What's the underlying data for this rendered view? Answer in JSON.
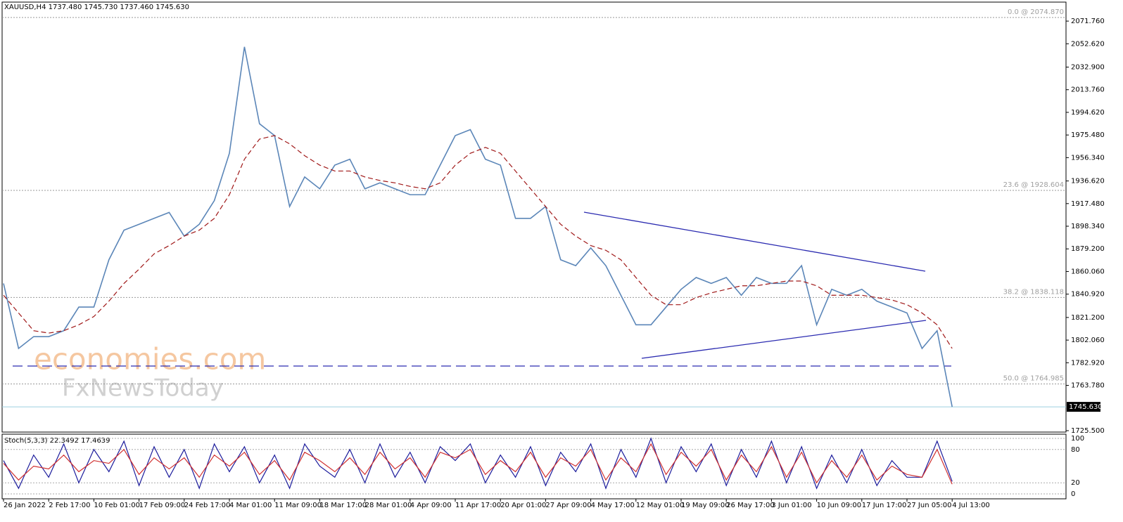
{
  "chart_data": {
    "type": "line",
    "title": "XAUUSD,H4  1737.480 1745.730 1737.460 1745.630",
    "watermark": [
      "economies.com",
      "FxNewsToday"
    ],
    "categories": [
      "26 Jan 2022",
      null,
      null,
      "2 Feb 17:00",
      null,
      null,
      "10 Feb 01:00",
      null,
      null,
      "17 Feb 09:00",
      null,
      null,
      "24 Feb 17:00",
      null,
      null,
      "4 Mar 01:00",
      null,
      null,
      "11 Mar 09:00",
      null,
      null,
      "18 Mar 17:00",
      null,
      null,
      "28 Mar 01:00",
      null,
      null,
      "4 Apr 09:00",
      null,
      null,
      "11 Apr 17:00",
      null,
      null,
      "20 Apr 01:00",
      null,
      null,
      "27 Apr 09:00",
      null,
      null,
      "4 May 17:00",
      null,
      null,
      "12 May 01:00",
      null,
      null,
      "19 May 09:00",
      null,
      null,
      "26 May 17:00",
      null,
      null,
      "3 Jun 01:00",
      null,
      null,
      "10 Jun 09:00",
      null,
      null,
      "17 Jun 17:00",
      null,
      null,
      "27 Jun 05:00",
      null,
      null,
      "4 Jul 13:00"
    ],
    "series": [
      {
        "color": "#5b86b8",
        "values": [
          1850,
          1795,
          1805,
          1805,
          1810,
          1830,
          1830,
          1870,
          1895,
          1900,
          1905,
          1910,
          1890,
          1900,
          1920,
          1960,
          2050,
          1985,
          1975,
          1915,
          1940,
          1930,
          1950,
          1955,
          1930,
          1935,
          1930,
          1925,
          1925,
          1950,
          1975,
          1980,
          1955,
          1950,
          1905,
          1905,
          1915,
          1870,
          1865,
          1880,
          1865,
          1840,
          1815,
          1815,
          1830,
          1845,
          1855,
          1850,
          1855,
          1840,
          1855,
          1850,
          1850,
          1865,
          1815,
          1845,
          1840,
          1845,
          1835,
          1830,
          1825,
          1795,
          1810,
          1745.63
        ]
      },
      {
        "color": "#a01818",
        "dashed": true,
        "values": [
          1840,
          1825,
          1810,
          1808,
          1810,
          1815,
          1822,
          1835,
          1850,
          1862,
          1875,
          1882,
          1890,
          1895,
          1905,
          1925,
          1955,
          1972,
          1975,
          1968,
          1958,
          1950,
          1945,
          1945,
          1940,
          1937,
          1935,
          1932,
          1930,
          1935,
          1950,
          1960,
          1965,
          1960,
          1945,
          1930,
          1915,
          1900,
          1890,
          1882,
          1878,
          1870,
          1855,
          1840,
          1832,
          1832,
          1838,
          1842,
          1845,
          1848,
          1848,
          1850,
          1852,
          1852,
          1848,
          1840,
          1840,
          1840,
          1838,
          1836,
          1832,
          1825,
          1815,
          1795
        ]
      }
    ],
    "ylim": [
      1724.3,
      2081.3
    ],
    "yticks": [
      {
        "value": 2071.76,
        "label": "2071.760"
      },
      {
        "value": 2052.62,
        "label": "2052.620"
      },
      {
        "value": 2032.9,
        "label": "2032.900"
      },
      {
        "value": 2013.76,
        "label": "2013.760"
      },
      {
        "value": 1994.62,
        "label": "1994.620"
      },
      {
        "value": 1975.48,
        "label": "1975.480"
      },
      {
        "value": 1956.34,
        "label": "1956.340"
      },
      {
        "value": 1936.62,
        "label": "1936.620"
      },
      {
        "value": 1917.48,
        "label": "1917.480"
      },
      {
        "value": 1898.34,
        "label": "1898.340"
      },
      {
        "value": 1879.2,
        "label": "1879.200"
      },
      {
        "value": 1860.06,
        "label": "1860.060"
      },
      {
        "value": 1840.92,
        "label": "1840.920"
      },
      {
        "value": 1821.2,
        "label": "1821.200"
      },
      {
        "value": 1802.06,
        "label": "1802.060"
      },
      {
        "value": 1782.92,
        "label": "1782.920"
      },
      {
        "value": 1763.78,
        "label": "1763.780"
      },
      {
        "value": 1725.5,
        "label": "1725.500"
      }
    ],
    "last_price": {
      "value": 1745.63,
      "label": "1745.630"
    },
    "fib_levels": [
      {
        "value": 2074.87,
        "label": "0.0 @ 2074.870"
      },
      {
        "value": 1928.604,
        "label": "23.6 @ 1928.604"
      },
      {
        "value": 1838.118,
        "label": "38.2 @ 1838.118"
      },
      {
        "value": 1764.985,
        "label": "50.0 @ 1764.985"
      }
    ],
    "indicator": {
      "title": "Stoch(5,3,3) 22.3492 17.4639",
      "ylim": [
        -7.6,
        106.3
      ],
      "yticks": [
        100,
        80,
        20,
        0
      ],
      "series": [
        {
          "color": "#1c1c9c",
          "values": [
            60,
            10,
            70,
            30,
            90,
            20,
            80,
            40,
            95,
            15,
            85,
            30,
            80,
            10,
            90,
            40,
            85,
            20,
            70,
            10,
            90,
            50,
            30,
            80,
            20,
            90,
            30,
            75,
            20,
            85,
            60,
            90,
            20,
            70,
            30,
            85,
            15,
            75,
            40,
            90,
            10,
            80,
            30,
            100,
            20,
            85,
            40,
            90,
            15,
            80,
            30,
            95,
            20,
            85,
            10,
            70,
            20,
            80,
            15,
            60,
            30,
            30,
            95,
            22.3492
          ]
        },
        {
          "color": "#d03030",
          "values": [
            55,
            25,
            50,
            45,
            70,
            40,
            60,
            55,
            80,
            35,
            65,
            45,
            65,
            30,
            70,
            50,
            75,
            35,
            60,
            25,
            75,
            60,
            40,
            65,
            35,
            75,
            45,
            65,
            30,
            75,
            65,
            80,
            35,
            60,
            40,
            75,
            30,
            65,
            50,
            80,
            25,
            65,
            40,
            90,
            35,
            75,
            50,
            80,
            25,
            70,
            40,
            85,
            30,
            75,
            20,
            60,
            30,
            70,
            25,
            50,
            35,
            30,
            80,
            17.4639
          ]
        }
      ]
    }
  }
}
